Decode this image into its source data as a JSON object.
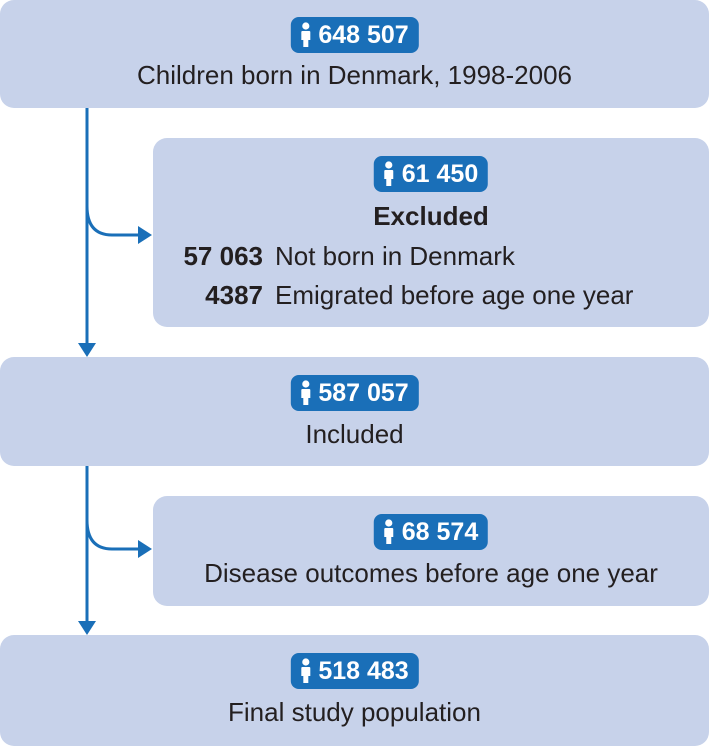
{
  "boxes": {
    "born": {
      "count": "648 507",
      "label": "Children born in Denmark, 1998-2006"
    },
    "excluded": {
      "count": "61 450",
      "label": "Excluded",
      "reasons": [
        {
          "count": "57 063",
          "label": "Not born in Denmark"
        },
        {
          "count": "4387",
          "label": "Emigrated before age one year"
        }
      ]
    },
    "included": {
      "count": "587 057",
      "label": "Included"
    },
    "disease": {
      "count": "68 574",
      "label": "Disease outcomes before age one year"
    },
    "final": {
      "count": "518 483",
      "label": "Final study population"
    }
  },
  "colors": {
    "box_fill": "#c7d2ea",
    "badge_fill": "#1a6fb8",
    "arrow": "#1a6fb8",
    "text": "#231f20"
  },
  "icons": {
    "badge_icon": "person-icon"
  }
}
